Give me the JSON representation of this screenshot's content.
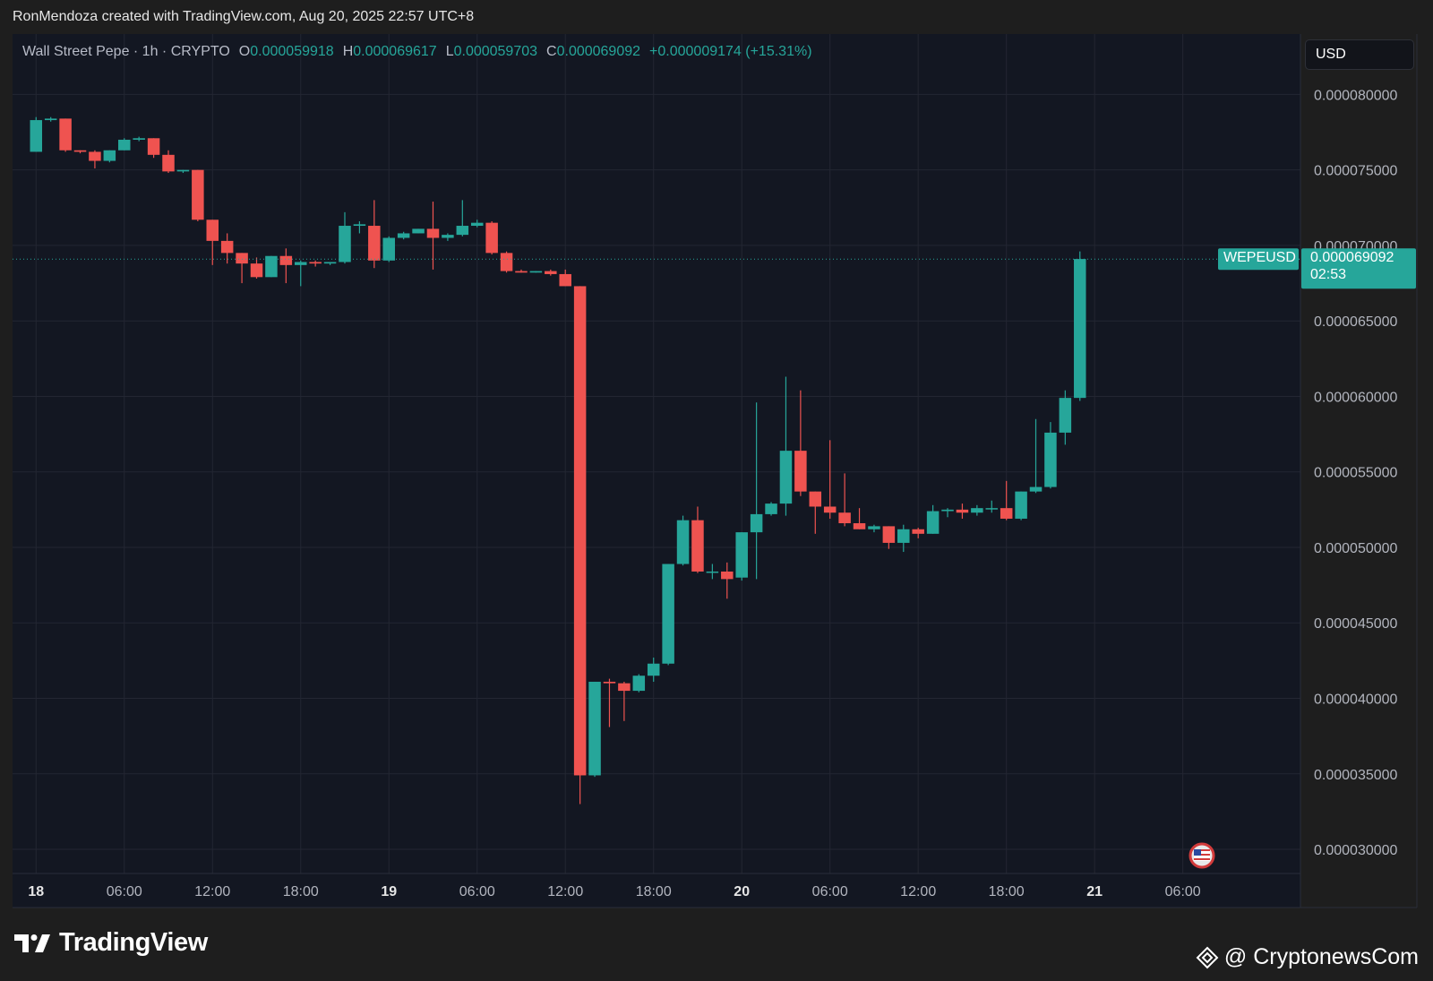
{
  "header": {
    "credit": "RonMendoza created with TradingView.com, Aug 20, 2025 22:57 UTC+8"
  },
  "legend": {
    "symbol": "Wall Street Pepe · 1h · CRYPTO",
    "o_label": "O",
    "o_value": "0.000059918",
    "h_label": "H",
    "h_value": "0.000069617",
    "l_label": "L",
    "l_value": "0.000059703",
    "c_label": "C",
    "c_value": "0.000069092",
    "change": "+0.000009174 (+15.31%)"
  },
  "currency": "USD",
  "price_tag": {
    "symbol": "WEPEUSD",
    "price": "0.000069092",
    "countdown": "02:53"
  },
  "branding": {
    "name": "TradingView",
    "watermark": "@ CryptonewsCom"
  },
  "colors": {
    "up": "#26a69a",
    "down": "#ef5350",
    "background": "#131722",
    "grid": "#232632"
  },
  "chart_data": {
    "type": "candlestick",
    "interval": "1h",
    "y_tick_labels": [
      "0.000080000",
      "0.000075000",
      "0.000070000",
      "0.000065000",
      "0.000060000",
      "0.000055000",
      "0.000050000",
      "0.000045000",
      "0.000040000",
      "0.000035000",
      "0.000030000"
    ],
    "x_tick_labels": [
      "18",
      "06:00",
      "12:00",
      "18:00",
      "19",
      "06:00",
      "12:00",
      "18:00",
      "20",
      "06:00",
      "12:00",
      "18:00",
      "21",
      "06:00"
    ],
    "ylim": [
      2.84e-05,
      8.4e-05
    ],
    "x_range_hours": [
      -1.6,
      86.0
    ],
    "last_price": 6.9092e-05,
    "candles": [
      {
        "o": 7.62e-05,
        "h": 7.85e-05,
        "l": 7.62e-05,
        "c": 7.83e-05
      },
      {
        "o": 7.83e-05,
        "h": 7.85e-05,
        "l": 7.82e-05,
        "c": 7.84e-05
      },
      {
        "o": 7.84e-05,
        "h": 7.84e-05,
        "l": 7.62e-05,
        "c": 7.63e-05
      },
      {
        "o": 7.63e-05,
        "h": 7.63e-05,
        "l": 7.61e-05,
        "c": 7.62e-05
      },
      {
        "o": 7.62e-05,
        "h": 7.63e-05,
        "l": 7.51e-05,
        "c": 7.56e-05
      },
      {
        "o": 7.56e-05,
        "h": 7.63e-05,
        "l": 7.55e-05,
        "c": 7.63e-05
      },
      {
        "o": 7.63e-05,
        "h": 7.71e-05,
        "l": 7.63e-05,
        "c": 7.7e-05
      },
      {
        "o": 7.7e-05,
        "h": 7.72e-05,
        "l": 7.69e-05,
        "c": 7.71e-05
      },
      {
        "o": 7.71e-05,
        "h": 7.71e-05,
        "l": 7.58e-05,
        "c": 7.6e-05
      },
      {
        "o": 7.6e-05,
        "h": 7.63e-05,
        "l": 7.48e-05,
        "c": 7.49e-05
      },
      {
        "o": 7.49e-05,
        "h": 7.5e-05,
        "l": 7.48e-05,
        "c": 7.5e-05
      },
      {
        "o": 7.5e-05,
        "h": 7.5e-05,
        "l": 7.16e-05,
        "c": 7.17e-05
      },
      {
        "o": 7.17e-05,
        "h": 7.17e-05,
        "l": 6.87e-05,
        "c": 7.03e-05
      },
      {
        "o": 7.03e-05,
        "h": 7.08e-05,
        "l": 6.88e-05,
        "c": 6.95e-05
      },
      {
        "o": 6.95e-05,
        "h": 6.95e-05,
        "l": 6.75e-05,
        "c": 6.88e-05
      },
      {
        "o": 6.88e-05,
        "h": 6.92e-05,
        "l": 6.78e-05,
        "c": 6.79e-05
      },
      {
        "o": 6.79e-05,
        "h": 6.93e-05,
        "l": 6.79e-05,
        "c": 6.93e-05
      },
      {
        "o": 6.93e-05,
        "h": 6.98e-05,
        "l": 6.75e-05,
        "c": 6.87e-05
      },
      {
        "o": 6.87e-05,
        "h": 6.9e-05,
        "l": 6.73e-05,
        "c": 6.89e-05
      },
      {
        "o": 6.89e-05,
        "h": 6.9e-05,
        "l": 6.86e-05,
        "c": 6.88e-05
      },
      {
        "o": 6.88e-05,
        "h": 6.89e-05,
        "l": 6.87e-05,
        "c": 6.89e-05
      },
      {
        "o": 6.89e-05,
        "h": 7.22e-05,
        "l": 6.88e-05,
        "c": 7.13e-05
      },
      {
        "o": 7.13e-05,
        "h": 7.16e-05,
        "l": 7.08e-05,
        "c": 7.14e-05
      },
      {
        "o": 7.13e-05,
        "h": 7.3e-05,
        "l": 6.85e-05,
        "c": 6.9e-05
      },
      {
        "o": 6.9e-05,
        "h": 7.06e-05,
        "l": 6.89e-05,
        "c": 7.05e-05
      },
      {
        "o": 7.05e-05,
        "h": 7.09e-05,
        "l": 7.04e-05,
        "c": 7.08e-05
      },
      {
        "o": 7.08e-05,
        "h": 7.11e-05,
        "l": 7.08e-05,
        "c": 7.11e-05
      },
      {
        "o": 7.11e-05,
        "h": 7.29e-05,
        "l": 6.84e-05,
        "c": 7.05e-05
      },
      {
        "o": 7.05e-05,
        "h": 7.08e-05,
        "l": 7.03e-05,
        "c": 7.07e-05
      },
      {
        "o": 7.07e-05,
        "h": 7.3e-05,
        "l": 7.06e-05,
        "c": 7.13e-05
      },
      {
        "o": 7.13e-05,
        "h": 7.17e-05,
        "l": 7.12e-05,
        "c": 7.15e-05
      },
      {
        "o": 7.15e-05,
        "h": 7.16e-05,
        "l": 6.94e-05,
        "c": 6.95e-05
      },
      {
        "o": 6.95e-05,
        "h": 6.96e-05,
        "l": 6.82e-05,
        "c": 6.83e-05
      },
      {
        "o": 6.83e-05,
        "h": 6.84e-05,
        "l": 6.82e-05,
        "c": 6.82e-05
      },
      {
        "o": 6.82e-05,
        "h": 6.83e-05,
        "l": 6.82e-05,
        "c": 6.83e-05
      },
      {
        "o": 6.83e-05,
        "h": 6.84e-05,
        "l": 6.8e-05,
        "c": 6.81e-05
      },
      {
        "o": 6.81e-05,
        "h": 6.84e-05,
        "l": 6.73e-05,
        "c": 6.73e-05
      },
      {
        "o": 6.73e-05,
        "h": 6.73e-05,
        "l": 3.3e-05,
        "c": 3.49e-05
      },
      {
        "o": 3.49e-05,
        "h": 4.11e-05,
        "l": 3.48e-05,
        "c": 4.11e-05
      },
      {
        "o": 4.11e-05,
        "h": 4.13e-05,
        "l": 3.81e-05,
        "c": 4.1e-05
      },
      {
        "o": 4.1e-05,
        "h": 4.11e-05,
        "l": 3.85e-05,
        "c": 4.05e-05
      },
      {
        "o": 4.05e-05,
        "h": 4.16e-05,
        "l": 4.04e-05,
        "c": 4.15e-05
      },
      {
        "o": 4.15e-05,
        "h": 4.27e-05,
        "l": 4.11e-05,
        "c": 4.23e-05
      },
      {
        "o": 4.23e-05,
        "h": 4.89e-05,
        "l": 4.22e-05,
        "c": 4.89e-05
      },
      {
        "o": 4.89e-05,
        "h": 5.21e-05,
        "l": 4.88e-05,
        "c": 5.18e-05
      },
      {
        "o": 5.18e-05,
        "h": 5.27e-05,
        "l": 4.83e-05,
        "c": 4.84e-05
      },
      {
        "o": 4.84e-05,
        "h": 4.89e-05,
        "l": 4.79e-05,
        "c": 4.84e-05
      },
      {
        "o": 4.84e-05,
        "h": 4.9e-05,
        "l": 4.66e-05,
        "c": 4.79e-05
      },
      {
        "o": 4.8e-05,
        "h": 5.1e-05,
        "l": 4.78e-05,
        "c": 5.1e-05
      },
      {
        "o": 5.1e-05,
        "h": 5.96e-05,
        "l": 4.79e-05,
        "c": 5.22e-05
      },
      {
        "o": 5.22e-05,
        "h": 5.3e-05,
        "l": 5.21e-05,
        "c": 5.29e-05
      },
      {
        "o": 5.29e-05,
        "h": 6.13e-05,
        "l": 5.21e-05,
        "c": 5.64e-05
      },
      {
        "o": 5.64e-05,
        "h": 6.04e-05,
        "l": 5.34e-05,
        "c": 5.37e-05
      },
      {
        "o": 5.37e-05,
        "h": 5.37e-05,
        "l": 5.09e-05,
        "c": 5.27e-05
      },
      {
        "o": 5.27e-05,
        "h": 5.71e-05,
        "l": 5.19e-05,
        "c": 5.23e-05
      },
      {
        "o": 5.23e-05,
        "h": 5.49e-05,
        "l": 5.14e-05,
        "c": 5.16e-05
      },
      {
        "o": 5.16e-05,
        "h": 5.26e-05,
        "l": 5.12e-05,
        "c": 5.12e-05
      },
      {
        "o": 5.12e-05,
        "h": 5.15e-05,
        "l": 5.1e-05,
        "c": 5.14e-05
      },
      {
        "o": 5.14e-05,
        "h": 5.14e-05,
        "l": 4.99e-05,
        "c": 5.03e-05
      },
      {
        "o": 5.03e-05,
        "h": 5.15e-05,
        "l": 4.97e-05,
        "c": 5.12e-05
      },
      {
        "o": 5.12e-05,
        "h": 5.13e-05,
        "l": 5.06e-05,
        "c": 5.09e-05
      },
      {
        "o": 5.09e-05,
        "h": 5.28e-05,
        "l": 5.09e-05,
        "c": 5.24e-05
      },
      {
        "o": 5.24e-05,
        "h": 5.26e-05,
        "l": 5.2e-05,
        "c": 5.25e-05
      },
      {
        "o": 5.25e-05,
        "h": 5.29e-05,
        "l": 5.19e-05,
        "c": 5.23e-05
      },
      {
        "o": 5.23e-05,
        "h": 5.28e-05,
        "l": 5.21e-05,
        "c": 5.26e-05
      },
      {
        "o": 5.26e-05,
        "h": 5.31e-05,
        "l": 5.23e-05,
        "c": 5.26e-05
      },
      {
        "o": 5.26e-05,
        "h": 5.44e-05,
        "l": 5.18e-05,
        "c": 5.19e-05
      },
      {
        "o": 5.19e-05,
        "h": 5.37e-05,
        "l": 5.18e-05,
        "c": 5.37e-05
      },
      {
        "o": 5.37e-05,
        "h": 5.85e-05,
        "l": 5.36e-05,
        "c": 5.4e-05
      },
      {
        "o": 5.4e-05,
        "h": 5.83e-05,
        "l": 5.39e-05,
        "c": 5.76e-05
      },
      {
        "o": 5.76e-05,
        "h": 6.04e-05,
        "l": 5.68e-05,
        "c": 5.99e-05
      },
      {
        "o": 5.99e-05,
        "h": 6.96e-05,
        "l": 5.97e-05,
        "c": 6.91e-05
      }
    ]
  }
}
